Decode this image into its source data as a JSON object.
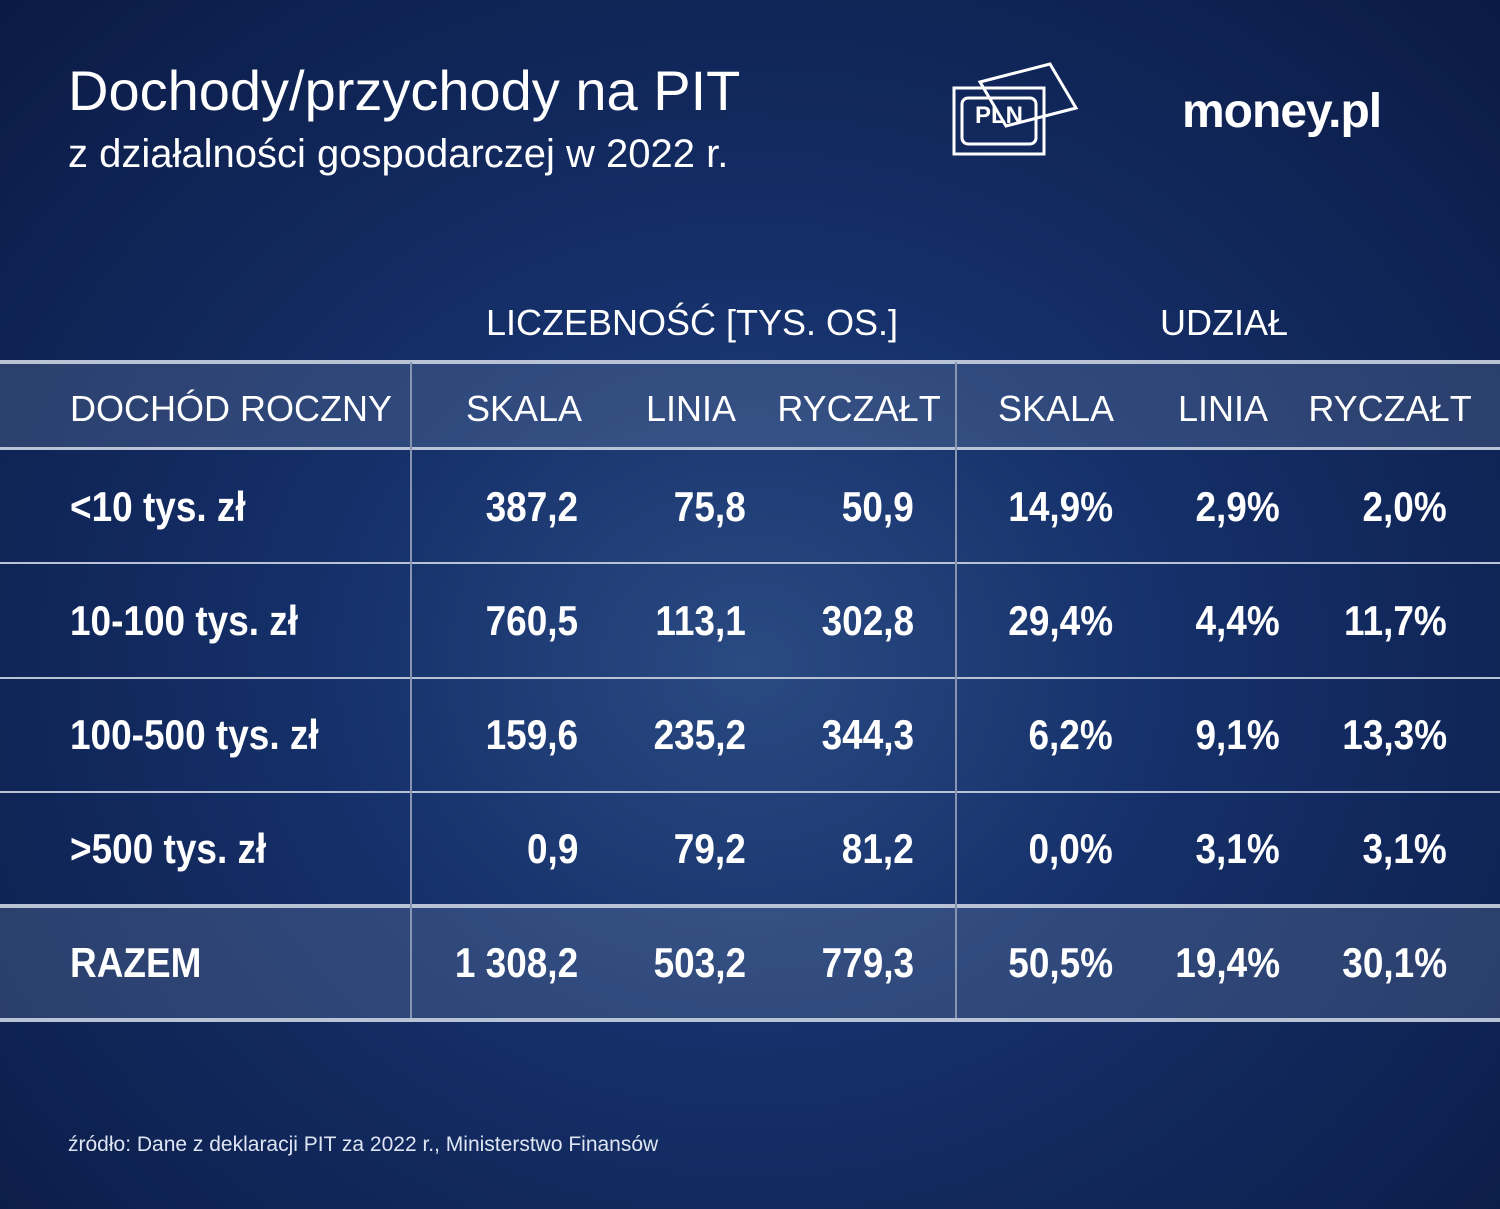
{
  "header": {
    "title": "Dochody/przychody na PIT",
    "subtitle": "z działalności gospodarczej w 2022 r.",
    "icon_label": "PLN",
    "logo": "money.pl"
  },
  "table": {
    "group_headers": [
      "LICZEBNOŚĆ [TYS. OS.]",
      "UDZIAŁ"
    ],
    "columns": [
      "DOCHÓD ROCZNY",
      "SKALA",
      "LINIA",
      "RYCZAŁT",
      "SKALA",
      "LINIA",
      "RYCZAŁT"
    ],
    "rows": [
      [
        "<10 tys. zł",
        "387,2",
        "75,8",
        "50,9",
        "14,9%",
        "2,9%",
        "2,0%"
      ],
      [
        "10-100 tys. zł",
        "760,5",
        "113,1",
        "302,8",
        "29,4%",
        "4,4%",
        "11,7%"
      ],
      [
        "100-500 tys. zł",
        "159,6",
        "235,2",
        "344,3",
        "6,2%",
        "9,1%",
        "13,3%"
      ],
      [
        ">500 tys. zł",
        "0,9",
        "79,2",
        "81,2",
        "0,0%",
        "3,1%",
        "3,1%"
      ]
    ],
    "total": [
      "RAZEM",
      "1 308,2",
      "503,2",
      "779,3",
      "50,5%",
      "19,4%",
      "30,1%"
    ]
  },
  "source": "źródło: Dane z deklaracji PIT za 2022 r., Ministerstwo Finansów"
}
